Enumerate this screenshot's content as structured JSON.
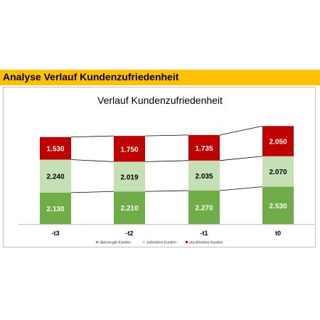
{
  "header": {
    "title": "Analyse Verlauf Kundenzufriedenheit"
  },
  "chart_data": {
    "type": "bar",
    "stacked": true,
    "title": "Verlauf Kundenzufriedenheit",
    "categories": [
      "-t3",
      "-t2",
      "-t1",
      "t0"
    ],
    "series": [
      {
        "name": "überzeugte Kunden",
        "values": [
          2130,
          2210,
          2270,
          2530
        ],
        "labels": [
          "2.130",
          "2.210",
          "2.270",
          "2.530"
        ],
        "color": "#70ad47",
        "text_color": "#ffffff"
      },
      {
        "name": "zufriedene Kunden",
        "values": [
          2240,
          2019,
          2035,
          2070
        ],
        "labels": [
          "2.240",
          "2.019",
          "2.035",
          "2.070"
        ],
        "color": "#c5e0b4",
        "text_color": "#000000"
      },
      {
        "name": "unzufriedene Kunden",
        "values": [
          1530,
          1750,
          1735,
          2050
        ],
        "labels": [
          "1.530",
          "1.750",
          "1.735",
          "2.050"
        ],
        "color": "#c00000",
        "text_color": "#ffffff"
      }
    ],
    "ylim": [
      0,
      7000
    ],
    "grid": false,
    "series_lines": true,
    "legend_position": "bottom"
  }
}
